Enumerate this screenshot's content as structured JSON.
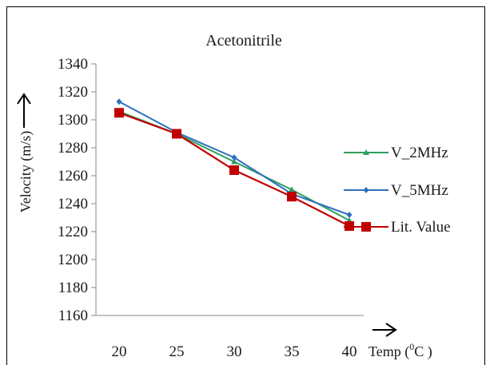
{
  "chart_data": {
    "type": "line",
    "title": "Acetonitrile",
    "xlabel": "Temp (",
    "xlabel_super": "0",
    "xlabel_tail": "C )",
    "ylabel": "Velocity (m/s)",
    "categories": [
      "20",
      "25",
      "30",
      "35",
      "40"
    ],
    "x": [
      20,
      25,
      30,
      35,
      40
    ],
    "ylim": [
      1160,
      1340
    ],
    "ystep": 20,
    "grid": false,
    "legend_position": "right",
    "series": [
      {
        "name": "V_2MHz",
        "values": [
          1306,
          1290,
          1270,
          1250,
          1228
        ],
        "color": "#2e9e5e",
        "marker": "triangle"
      },
      {
        "name": "V_5MHz",
        "values": [
          1313,
          1291,
          1273,
          1247,
          1232
        ],
        "color": "#2e6fc0",
        "marker": "diamond"
      },
      {
        "name": "Lit. Value",
        "values": [
          1305,
          1290,
          1264,
          1245,
          1224
        ],
        "color": "#c00000",
        "marker": "square"
      }
    ]
  }
}
